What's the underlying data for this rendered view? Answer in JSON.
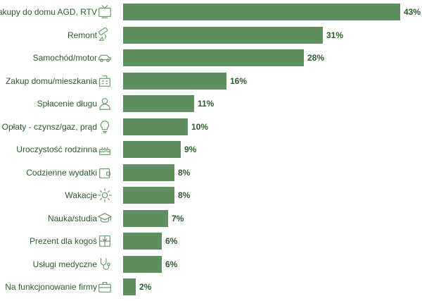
{
  "chart_data": {
    "type": "bar",
    "orientation": "horizontal",
    "title": "",
    "xlabel": "",
    "ylabel": "",
    "xlim": [
      0,
      43
    ],
    "grid": false,
    "legend": "none",
    "bar_color": "#5e8f5e",
    "text_color": "#2d5a2e",
    "icon_color": "#6a9a6a",
    "categories": [
      "Zakupy do domu AGD, RTV",
      "Remont",
      "Samochód/motor",
      "Zakup domu/mieszkania",
      "Spłacenie długu",
      "Opłaty - czynsz/gaz, prąd",
      "Uroczystość rodzinna",
      "Codzienne wydatki",
      "Wakacje",
      "Nauka/studia",
      "Prezent dla kogoś",
      "Usługi medyczne",
      "Na funkcjonowanie firmy"
    ],
    "values": [
      43,
      31,
      28,
      16,
      11,
      10,
      9,
      8,
      8,
      7,
      6,
      6,
      2
    ],
    "value_labels": [
      "43%",
      "31%",
      "28%",
      "16%",
      "11%",
      "10%",
      "9%",
      "8%",
      "8%",
      "7%",
      "6%",
      "6%",
      "2%"
    ],
    "icons": [
      "tv-icon",
      "paint-roller-icon",
      "car-icon",
      "building-icon",
      "person-icon",
      "lightbulb-icon",
      "cake-icon",
      "wallet-icon",
      "sun-icon",
      "graduation-cap-icon",
      "gift-icon",
      "stethoscope-icon",
      "briefcase-icon"
    ]
  }
}
